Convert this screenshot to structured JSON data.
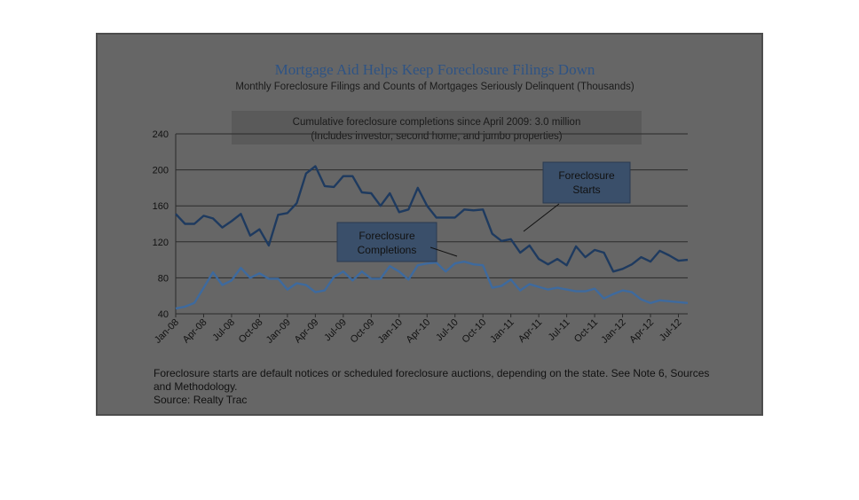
{
  "chart_data": {
    "type": "line",
    "title": "Mortgage Aid Helps Keep Foreclosure Filings Down",
    "subtitle": "Monthly Foreclosure Filings and Counts of Mortgages Seriously Delinquent (Thousands)",
    "annotation_lines": [
      "Cumulative foreclosure completions since April 2009: 3.0 million",
      "(Includes investor, second home, and jumbo properties)"
    ],
    "callouts": {
      "starts": [
        "Foreclosure",
        "Starts"
      ],
      "completions": [
        "Foreclosure",
        "Completions"
      ]
    },
    "ylim": [
      40,
      240
    ],
    "yticks": [
      40,
      80,
      120,
      160,
      200,
      240
    ],
    "xtick_labels": [
      "Jan-08",
      "Apr-08",
      "Jul-08",
      "Oct-08",
      "Jan-09",
      "Apr-09",
      "Jul-09",
      "Oct-09",
      "Jan-10",
      "Apr-10",
      "Jul-10",
      "Oct-10",
      "Jan-11",
      "Apr-11",
      "Jul-11",
      "Oct-11",
      "Jan-12",
      "Apr-12",
      "Jul-12"
    ],
    "grid": true,
    "series": [
      {
        "name": "Foreclosure Starts",
        "color": "#1e3a5f",
        "values": [
          151,
          140,
          140,
          149,
          146,
          136,
          143,
          151,
          127,
          134,
          116,
          150,
          152,
          163,
          196,
          204,
          182,
          181,
          193,
          193,
          175,
          174,
          160,
          174,
          153,
          156,
          180,
          160,
          147,
          147,
          147,
          156,
          155,
          156,
          129,
          121,
          123,
          108,
          116,
          101,
          95,
          101,
          94,
          115,
          103,
          111,
          108,
          87,
          90,
          95,
          103,
          98,
          110,
          105,
          99,
          100
        ]
      },
      {
        "name": "Foreclosure Completions",
        "color": "#3e6a9e",
        "values": [
          46,
          48,
          52,
          69,
          86,
          72,
          77,
          91,
          80,
          85,
          79,
          79,
          67,
          74,
          72,
          64,
          66,
          81,
          87,
          77,
          87,
          79,
          79,
          93,
          87,
          78,
          94,
          96,
          97,
          87,
          96,
          98,
          95,
          94,
          69,
          71,
          78,
          66,
          73,
          70,
          67,
          69,
          67,
          65,
          65,
          68,
          57,
          62,
          66,
          64,
          56,
          52,
          55,
          54,
          53,
          52
        ]
      }
    ],
    "footnote_lines": [
      "Foreclosure starts are default notices or scheduled foreclosure auctions, depending on the state. See Note 6, Sources",
      "and Methodology.",
      "Source: Realty Trac"
    ]
  }
}
